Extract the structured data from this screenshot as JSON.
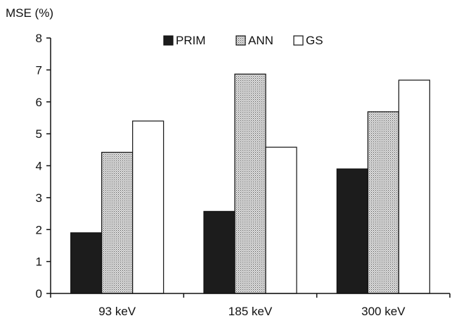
{
  "chart_data": {
    "type": "bar",
    "title": "",
    "xlabel": "",
    "ylabel": "MSE (%)",
    "ylim": [
      0,
      8
    ],
    "yticks": [
      0,
      1,
      2,
      3,
      4,
      5,
      6,
      7,
      8
    ],
    "grid": false,
    "legend_position": "top-center",
    "categories": [
      "93 keV",
      "185 keV",
      "300 keV"
    ],
    "series": [
      {
        "name": "PRIM",
        "fill": "solid-black",
        "color": "#1c1c1c",
        "values": [
          1.9,
          2.57,
          3.9
        ]
      },
      {
        "name": "ANN",
        "fill": "dotted-gray",
        "color": "#c8c8c8",
        "values": [
          4.42,
          6.87,
          5.69
        ]
      },
      {
        "name": "GS",
        "fill": "white",
        "color": "#ffffff",
        "values": [
          5.4,
          4.58,
          6.68
        ]
      }
    ]
  }
}
